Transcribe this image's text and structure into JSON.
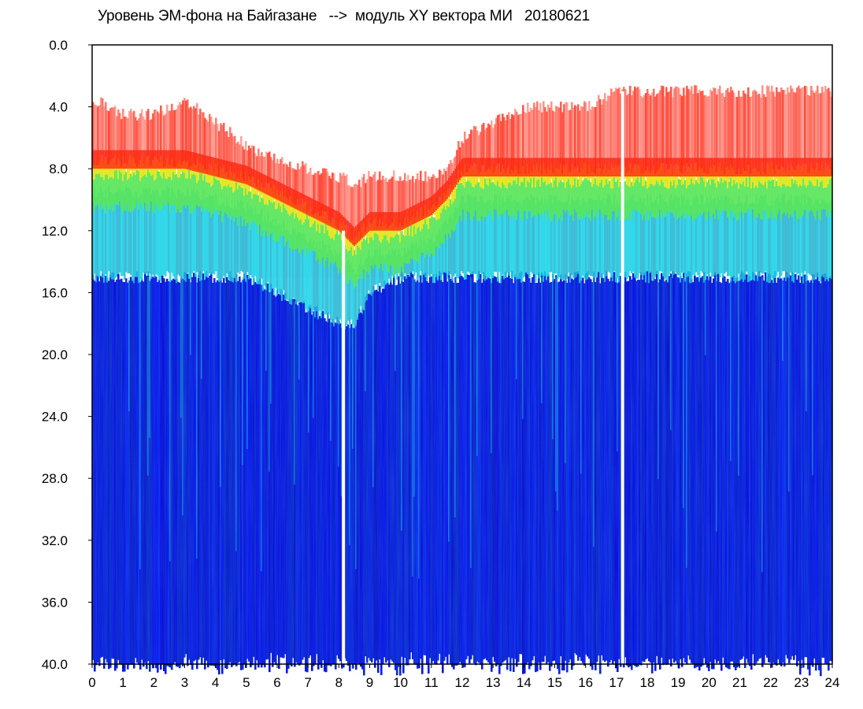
{
  "chart_data": {
    "type": "heatmap",
    "title": "Уровень ЭМ-фона на Байгазане   -->  модуль XY вектора МИ   20180621",
    "xlabel": "",
    "ylabel": "",
    "xlim": [
      0,
      24
    ],
    "ylim": [
      0,
      40
    ],
    "y_inverted": true,
    "x_ticks": [
      "0",
      "1",
      "2",
      "3",
      "4",
      "5",
      "6",
      "7",
      "8",
      "9",
      "10",
      "11",
      "12",
      "13",
      "14",
      "15",
      "16",
      "17",
      "18",
      "19",
      "20",
      "21",
      "22",
      "23",
      "24"
    ],
    "y_ticks": [
      "0.0",
      "4.0",
      "8.0",
      "12.0",
      "16.0",
      "20.0",
      "24.0",
      "28.0",
      "32.0",
      "36.0",
      "40.0"
    ],
    "colors": {
      "background": "#0a1ed2",
      "low": "#1432e6",
      "cyan": "#19d2e6",
      "green": "#5ae65a",
      "yellow": "#e6e628",
      "red": "#ff2814"
    },
    "band_profile": {
      "hours": [
        0,
        1,
        2,
        3,
        4,
        5,
        6,
        7,
        8,
        8.5,
        9,
        10,
        11,
        11.5,
        12,
        13,
        14,
        15,
        16,
        17,
        18,
        19,
        20,
        21,
        22,
        23,
        24
      ],
      "upper_edge": [
        3.5,
        4.5,
        4.5,
        3.5,
        5.0,
        6.5,
        7.5,
        8.0,
        8.5,
        9.0,
        8.5,
        8.5,
        8.5,
        8.0,
        6.0,
        5.0,
        4.0,
        4.0,
        4.0,
        3.0,
        3.0,
        3.0,
        3.0,
        3.0,
        3.0,
        3.0,
        3.0
      ],
      "green_top": [
        8.0,
        8.0,
        8.0,
        8.0,
        8.5,
        9.0,
        10.0,
        11.0,
        12.0,
        13.0,
        12.0,
        12.0,
        11.0,
        10.0,
        8.5,
        8.5,
        8.5,
        8.5,
        8.5,
        8.5,
        8.5,
        8.5,
        8.5,
        8.5,
        8.5,
        8.5,
        8.5
      ],
      "lower_edge": [
        15.0,
        15.0,
        15.0,
        15.0,
        15.0,
        15.0,
        16.0,
        17.0,
        18.0,
        18.0,
        16.0,
        15.0,
        15.0,
        15.0,
        15.0,
        15.0,
        15.0,
        15.0,
        15.0,
        15.0,
        15.0,
        15.0,
        15.0,
        15.0,
        15.0,
        15.0,
        15.0
      ]
    },
    "gaps_hours": [
      8.15,
      17.2
    ]
  }
}
